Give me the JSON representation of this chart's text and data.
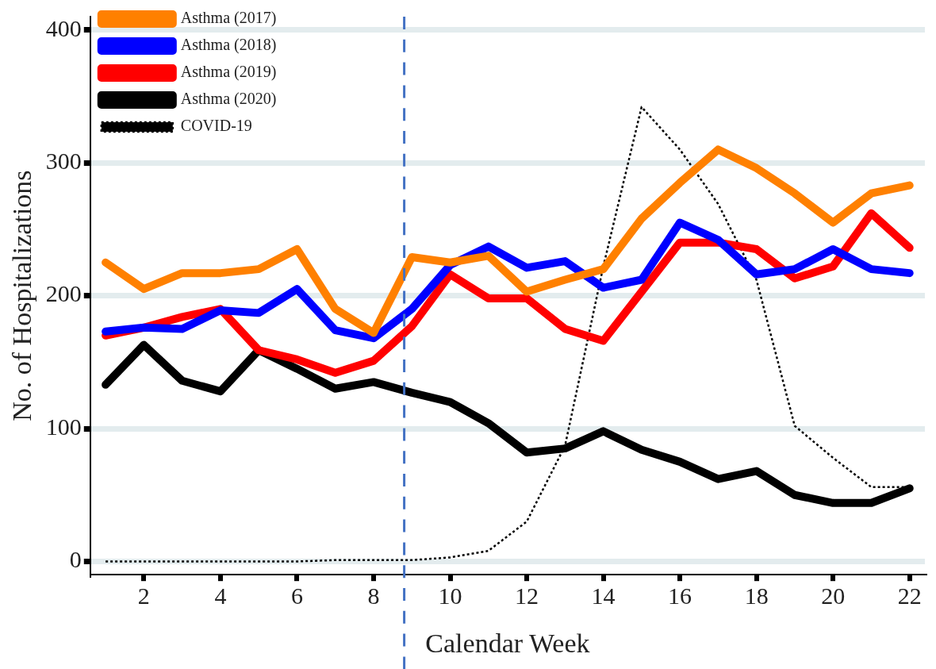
{
  "chart_data": {
    "type": "line",
    "xlabel": "Calendar Week",
    "ylabel": "No. of Hospitalizations",
    "x": [
      1,
      2,
      3,
      4,
      5,
      6,
      7,
      8,
      9,
      10,
      11,
      12,
      13,
      14,
      15,
      16,
      17,
      18,
      19,
      20,
      21,
      22
    ],
    "xlim": [
      0.6,
      22.4
    ],
    "xticks": [
      2,
      4,
      6,
      8,
      10,
      12,
      14,
      16,
      18,
      20,
      22
    ],
    "ylim": [
      -10,
      410
    ],
    "yticks": [
      0,
      100,
      200,
      300,
      400
    ],
    "grid": "y",
    "legend": "top left",
    "marker": "none",
    "ref_lines": [
      {
        "axis": "x",
        "value": 8.8,
        "color": "#4472c4",
        "line_style": "dashed"
      }
    ],
    "series": [
      {
        "name": "Asthma (2017)",
        "color": "#ff8000",
        "line_style": "solid",
        "values": [
          225,
          205,
          217,
          217,
          220,
          235,
          190,
          172,
          229,
          225,
          230,
          203,
          212,
          220,
          258,
          285,
          310,
          296,
          277,
          255,
          277,
          283
        ]
      },
      {
        "name": "Asthma (2018)",
        "color": "#0000ff",
        "line_style": "solid",
        "values": [
          173,
          176,
          175,
          189,
          187,
          205,
          174,
          168,
          190,
          223,
          237,
          221,
          226,
          206,
          212,
          255,
          242,
          216,
          220,
          235,
          220,
          217
        ]
      },
      {
        "name": "Asthma (2019)",
        "color": "#ff0000",
        "line_style": "solid",
        "values": [
          170,
          176,
          184,
          190,
          159,
          152,
          142,
          151,
          177,
          216,
          198,
          198,
          175,
          166,
          203,
          240,
          240,
          235,
          213,
          222,
          262,
          236
        ]
      },
      {
        "name": "Asthma (2020)",
        "color": "#000000",
        "line_style": "solid",
        "values": [
          133,
          163,
          136,
          128,
          159,
          145,
          130,
          135,
          127,
          120,
          104,
          82,
          85,
          98,
          84,
          75,
          62,
          68,
          50,
          44,
          44,
          55
        ]
      },
      {
        "name": "COVID-19",
        "color": "#000000",
        "line_style": "dotted",
        "values": [
          0,
          0,
          0,
          0,
          0,
          0,
          1,
          1,
          1,
          3,
          8,
          30,
          87,
          222,
          342,
          310,
          269,
          212,
          102,
          78,
          56,
          56
        ]
      }
    ]
  }
}
